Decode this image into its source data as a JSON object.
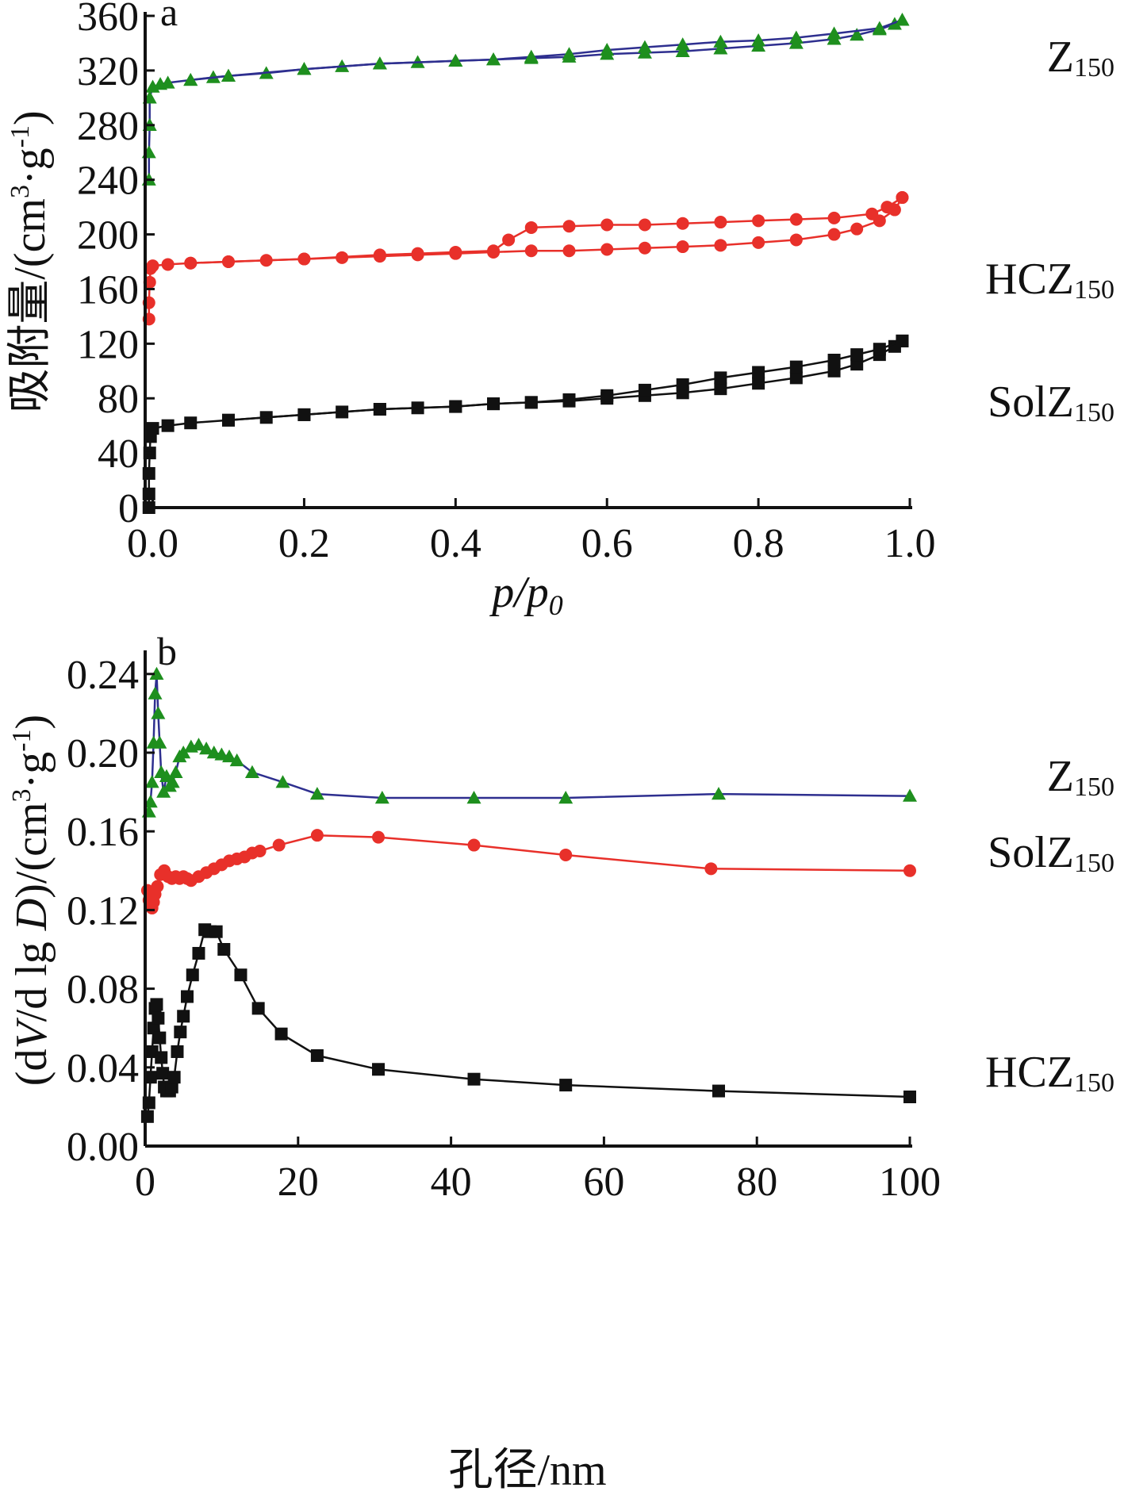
{
  "chart_data": [
    {
      "type": "line",
      "panel_label": "a",
      "xlabel": "p/p0",
      "xlabel_parts": {
        "main": "p/p",
        "sub": "0"
      },
      "ylabel": "吸附量/(cm3·g-1)",
      "ylabel_parts": {
        "text1": "吸附量/(cm",
        "sup1": "3",
        "text2": "·g",
        "sup2": "-1",
        "text3": ")"
      },
      "xlim": [
        -0.01,
        1.0
      ],
      "ylim": [
        0,
        360
      ],
      "xticks": [
        0.0,
        0.2,
        0.4,
        0.6,
        0.8,
        1.0
      ],
      "xtick_labels": [
        "0.0",
        "0.2",
        "0.4",
        "0.6",
        "0.8",
        "1.0"
      ],
      "yticks": [
        0,
        40,
        80,
        120,
        160,
        200,
        240,
        280,
        320,
        360
      ],
      "ytick_labels": [
        "0",
        "40",
        "80",
        "120",
        "160",
        "200",
        "240",
        "280",
        "320",
        "360"
      ],
      "grid": false,
      "legend": "inline-right",
      "series": [
        {
          "name": "Z150",
          "name_main": "Z",
          "name_sub": "150",
          "color": "#1e8f1e",
          "line_color": "#2e2f8f",
          "marker": "triangle",
          "adsorption": [
            [
              -0.005,
              240
            ],
            [
              -0.005,
              260
            ],
            [
              -0.004,
              280
            ],
            [
              -0.004,
              300
            ],
            [
              0.0,
              308
            ],
            [
              0.01,
              310
            ],
            [
              0.02,
              311
            ],
            [
              0.05,
              313
            ],
            [
              0.08,
              315
            ],
            [
              0.1,
              316
            ],
            [
              0.15,
              318
            ],
            [
              0.2,
              321
            ],
            [
              0.25,
              323
            ],
            [
              0.3,
              325
            ],
            [
              0.35,
              326
            ],
            [
              0.4,
              327
            ],
            [
              0.45,
              328
            ],
            [
              0.5,
              329
            ],
            [
              0.55,
              330
            ],
            [
              0.6,
              332
            ],
            [
              0.65,
              333
            ],
            [
              0.7,
              334
            ],
            [
              0.75,
              336
            ],
            [
              0.8,
              338
            ],
            [
              0.85,
              340
            ],
            [
              0.9,
              343
            ],
            [
              0.93,
              346
            ],
            [
              0.96,
              350
            ],
            [
              0.98,
              354
            ],
            [
              0.99,
              357
            ]
          ],
          "desorption": [
            [
              0.99,
              357
            ],
            [
              0.96,
              351
            ],
            [
              0.9,
              347
            ],
            [
              0.85,
              344
            ],
            [
              0.8,
              342
            ],
            [
              0.75,
              341
            ],
            [
              0.7,
              339
            ],
            [
              0.65,
              337
            ],
            [
              0.6,
              335
            ],
            [
              0.55,
              332
            ],
            [
              0.5,
              330
            ],
            [
              0.45,
              328
            ],
            [
              0.4,
              327
            ],
            [
              0.3,
              325
            ],
            [
              0.2,
              321
            ],
            [
              0.1,
              316
            ],
            [
              0.05,
              313
            ]
          ]
        },
        {
          "name": "HCZ150",
          "name_main": "HCZ",
          "name_sub": "150",
          "color": "#e8302a",
          "line_color": "#e8302a",
          "marker": "circle",
          "adsorption": [
            [
              -0.005,
              138
            ],
            [
              -0.005,
              150
            ],
            [
              -0.004,
              165
            ],
            [
              -0.003,
              175
            ],
            [
              0.0,
              177
            ],
            [
              0.02,
              178
            ],
            [
              0.05,
              179
            ],
            [
              0.1,
              180
            ],
            [
              0.15,
              181
            ],
            [
              0.2,
              182
            ],
            [
              0.25,
              183
            ],
            [
              0.3,
              184
            ],
            [
              0.35,
              185
            ],
            [
              0.4,
              186
            ],
            [
              0.45,
              187
            ],
            [
              0.5,
              188
            ],
            [
              0.55,
              188
            ],
            [
              0.6,
              189
            ],
            [
              0.65,
              190
            ],
            [
              0.7,
              191
            ],
            [
              0.75,
              192
            ],
            [
              0.8,
              194
            ],
            [
              0.85,
              196
            ],
            [
              0.9,
              200
            ],
            [
              0.93,
              204
            ],
            [
              0.96,
              210
            ],
            [
              0.98,
              218
            ],
            [
              0.99,
              227
            ]
          ],
          "desorption": [
            [
              0.99,
              227
            ],
            [
              0.97,
              220
            ],
            [
              0.95,
              215
            ],
            [
              0.9,
              212
            ],
            [
              0.85,
              211
            ],
            [
              0.8,
              210
            ],
            [
              0.75,
              209
            ],
            [
              0.7,
              208
            ],
            [
              0.65,
              207
            ],
            [
              0.6,
              207
            ],
            [
              0.55,
              206
            ],
            [
              0.5,
              205
            ],
            [
              0.47,
              196
            ],
            [
              0.45,
              188
            ],
            [
              0.4,
              187
            ],
            [
              0.35,
              186
            ],
            [
              0.3,
              185
            ],
            [
              0.2,
              182
            ],
            [
              0.1,
              180
            ],
            [
              0.05,
              179
            ]
          ]
        },
        {
          "name": "SolZ150",
          "name_main": "SolZ",
          "name_sub": "150",
          "color": "#111111",
          "line_color": "#111111",
          "marker": "square",
          "adsorption": [
            [
              -0.005,
              0
            ],
            [
              -0.005,
              10
            ],
            [
              -0.005,
              25
            ],
            [
              -0.004,
              40
            ],
            [
              -0.003,
              52
            ],
            [
              0.0,
              58
            ],
            [
              0.02,
              60
            ],
            [
              0.05,
              62
            ],
            [
              0.1,
              64
            ],
            [
              0.15,
              66
            ],
            [
              0.2,
              68
            ],
            [
              0.25,
              70
            ],
            [
              0.3,
              72
            ],
            [
              0.35,
              73
            ],
            [
              0.4,
              74
            ],
            [
              0.45,
              76
            ],
            [
              0.5,
              77
            ],
            [
              0.55,
              78
            ],
            [
              0.6,
              80
            ],
            [
              0.65,
              82
            ],
            [
              0.7,
              84
            ],
            [
              0.75,
              87
            ],
            [
              0.8,
              91
            ],
            [
              0.85,
              95
            ],
            [
              0.9,
              100
            ],
            [
              0.93,
              105
            ],
            [
              0.96,
              112
            ],
            [
              0.98,
              118
            ],
            [
              0.99,
              122
            ]
          ],
          "desorption": [
            [
              0.99,
              122
            ],
            [
              0.96,
              116
            ],
            [
              0.93,
              112
            ],
            [
              0.9,
              108
            ],
            [
              0.85,
              103
            ],
            [
              0.8,
              99
            ],
            [
              0.75,
              95
            ],
            [
              0.7,
              90
            ],
            [
              0.65,
              86
            ],
            [
              0.6,
              82
            ],
            [
              0.55,
              79
            ],
            [
              0.5,
              77
            ],
            [
              0.45,
              76
            ],
            [
              0.4,
              74
            ],
            [
              0.3,
              72
            ],
            [
              0.2,
              68
            ],
            [
              0.1,
              64
            ]
          ]
        }
      ]
    },
    {
      "type": "line",
      "panel_label": "b",
      "xlabel": "孔径/nm",
      "ylabel": "(dV/d lg D)/(cm3·g-1)",
      "ylabel_parts": {
        "text1": "(d",
        "it1": "V",
        "text2": "/d lg ",
        "it2": "D",
        "text3": ")/(cm",
        "sup1": "3",
        "text4": "·g",
        "sup2": "-1",
        "text5": ")"
      },
      "xlim": [
        0,
        100
      ],
      "ylim": [
        0,
        0.25
      ],
      "xticks": [
        0,
        20,
        40,
        60,
        80,
        100
      ],
      "xtick_labels": [
        "0",
        "20",
        "40",
        "60",
        "80",
        "100"
      ],
      "yticks": [
        0,
        0.04,
        0.08,
        0.12,
        0.16,
        0.2,
        0.24
      ],
      "ytick_labels": [
        "0.00",
        "0.04",
        "0.08",
        "0.12",
        "0.16",
        "0.20",
        "0.24"
      ],
      "grid": false,
      "legend": "inline-right",
      "series": [
        {
          "name": "Z150",
          "name_main": "Z",
          "name_sub": "150",
          "color": "#1e8f1e",
          "line_color": "#2e2f8f",
          "marker": "triangle",
          "points": [
            [
              0.5,
              0.17
            ],
            [
              0.7,
              0.175
            ],
            [
              0.9,
              0.185
            ],
            [
              1.1,
              0.205
            ],
            [
              1.3,
              0.23
            ],
            [
              1.5,
              0.24
            ],
            [
              1.7,
              0.22
            ],
            [
              1.9,
              0.205
            ],
            [
              2.1,
              0.19
            ],
            [
              2.4,
              0.18
            ],
            [
              2.8,
              0.188
            ],
            [
              3.2,
              0.183
            ],
            [
              3.6,
              0.185
            ],
            [
              4,
              0.19
            ],
            [
              4.5,
              0.198
            ],
            [
              5,
              0.2
            ],
            [
              6,
              0.203
            ],
            [
              7,
              0.204
            ],
            [
              8,
              0.202
            ],
            [
              9,
              0.2
            ],
            [
              10,
              0.199
            ],
            [
              11,
              0.198
            ],
            [
              12,
              0.196
            ],
            [
              14,
              0.19
            ],
            [
              18,
              0.185
            ],
            [
              22.5,
              0.179
            ],
            [
              31,
              0.177
            ],
            [
              43,
              0.177
            ],
            [
              55,
              0.177
            ],
            [
              75,
              0.179
            ],
            [
              100,
              0.178
            ]
          ]
        },
        {
          "name": "SolZ150",
          "name_main": "SolZ",
          "name_sub": "150",
          "color": "#e8302a",
          "line_color": "#e8302a",
          "marker": "circle",
          "points": [
            [
              0.3,
              0.13
            ],
            [
              0.5,
              0.125
            ],
            [
              0.7,
              0.122
            ],
            [
              0.9,
              0.121
            ],
            [
              1.1,
              0.124
            ],
            [
              1.3,
              0.128
            ],
            [
              1.6,
              0.132
            ],
            [
              2,
              0.138
            ],
            [
              2.5,
              0.14
            ],
            [
              3,
              0.137
            ],
            [
              3.5,
              0.136
            ],
            [
              4,
              0.137
            ],
            [
              4.5,
              0.136
            ],
            [
              5,
              0.137
            ],
            [
              5.5,
              0.136
            ],
            [
              6,
              0.135
            ],
            [
              7,
              0.137
            ],
            [
              8,
              0.139
            ],
            [
              9,
              0.141
            ],
            [
              10,
              0.143
            ],
            [
              11,
              0.145
            ],
            [
              12,
              0.146
            ],
            [
              13,
              0.147
            ],
            [
              14,
              0.149
            ],
            [
              15,
              0.15
            ],
            [
              17.5,
              0.153
            ],
            [
              22.5,
              0.158
            ],
            [
              30.5,
              0.157
            ],
            [
              43,
              0.153
            ],
            [
              55,
              0.148
            ],
            [
              74,
              0.141
            ],
            [
              100,
              0.14
            ]
          ]
        },
        {
          "name": "HCZ150",
          "name_main": "HCZ",
          "name_sub": "150",
          "color": "#111111",
          "line_color": "#111111",
          "marker": "square",
          "points": [
            [
              0.3,
              0.015
            ],
            [
              0.5,
              0.022
            ],
            [
              0.7,
              0.035
            ],
            [
              0.9,
              0.048
            ],
            [
              1.1,
              0.06
            ],
            [
              1.3,
              0.07
            ],
            [
              1.5,
              0.072
            ],
            [
              1.7,
              0.065
            ],
            [
              1.9,
              0.055
            ],
            [
              2.1,
              0.045
            ],
            [
              2.3,
              0.037
            ],
            [
              2.5,
              0.03
            ],
            [
              2.8,
              0.028
            ],
            [
              3.2,
              0.028
            ],
            [
              3.5,
              0.03
            ],
            [
              3.8,
              0.035
            ],
            [
              4.2,
              0.048
            ],
            [
              4.6,
              0.058
            ],
            [
              5,
              0.066
            ],
            [
              5.5,
              0.076
            ],
            [
              6.2,
              0.087
            ],
            [
              7,
              0.098
            ],
            [
              7.8,
              0.11
            ],
            [
              8.5,
              0.109
            ],
            [
              9.3,
              0.109
            ],
            [
              10.3,
              0.1
            ],
            [
              12.5,
              0.087
            ],
            [
              14.8,
              0.07
            ],
            [
              17.8,
              0.057
            ],
            [
              22.5,
              0.046
            ],
            [
              30.5,
              0.039
            ],
            [
              43,
              0.034
            ],
            [
              55,
              0.031
            ],
            [
              75,
              0.028
            ],
            [
              100,
              0.025
            ]
          ]
        }
      ]
    }
  ]
}
